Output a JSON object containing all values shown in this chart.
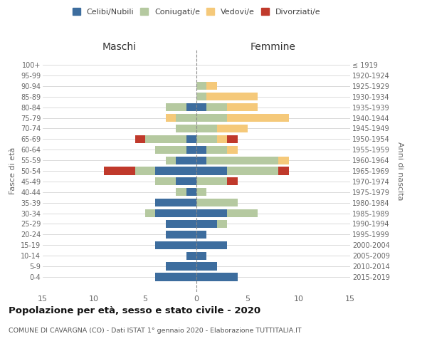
{
  "age_groups": [
    "100+",
    "95-99",
    "90-94",
    "85-89",
    "80-84",
    "75-79",
    "70-74",
    "65-69",
    "60-64",
    "55-59",
    "50-54",
    "45-49",
    "40-44",
    "35-39",
    "30-34",
    "25-29",
    "20-24",
    "15-19",
    "10-14",
    "5-9",
    "0-4"
  ],
  "birth_years": [
    "≤ 1919",
    "1920-1924",
    "1925-1929",
    "1930-1934",
    "1935-1939",
    "1940-1944",
    "1945-1949",
    "1950-1954",
    "1955-1959",
    "1960-1964",
    "1965-1969",
    "1970-1974",
    "1975-1979",
    "1980-1984",
    "1985-1989",
    "1990-1994",
    "1995-1999",
    "2000-2004",
    "2005-2009",
    "2010-2014",
    "2015-2019"
  ],
  "colors": {
    "celibe": "#3d6d9e",
    "coniugato": "#b5c9a0",
    "vedovo": "#f5c97a",
    "divorziato": "#c0392b"
  },
  "maschi": {
    "celibe": [
      0,
      0,
      0,
      0,
      1,
      0,
      0,
      1,
      1,
      2,
      4,
      2,
      1,
      4,
      4,
      3,
      3,
      4,
      1,
      3,
      4
    ],
    "coniugato": [
      0,
      0,
      0,
      0,
      2,
      2,
      2,
      4,
      3,
      1,
      2,
      2,
      1,
      0,
      1,
      0,
      0,
      0,
      0,
      0,
      0
    ],
    "vedovo": [
      0,
      0,
      0,
      0,
      0,
      1,
      0,
      0,
      0,
      0,
      0,
      0,
      0,
      0,
      0,
      0,
      0,
      0,
      0,
      0,
      0
    ],
    "divorziato": [
      0,
      0,
      0,
      0,
      0,
      0,
      0,
      1,
      0,
      0,
      3,
      0,
      0,
      0,
      0,
      0,
      0,
      0,
      0,
      0,
      0
    ]
  },
  "femmine": {
    "celibe": [
      0,
      0,
      0,
      0,
      1,
      0,
      0,
      0,
      1,
      1,
      3,
      0,
      0,
      0,
      3,
      2,
      1,
      3,
      1,
      2,
      4
    ],
    "coniugato": [
      0,
      0,
      1,
      1,
      2,
      3,
      2,
      2,
      2,
      7,
      5,
      3,
      1,
      4,
      3,
      1,
      0,
      0,
      0,
      0,
      0
    ],
    "vedovo": [
      0,
      0,
      1,
      5,
      3,
      6,
      3,
      1,
      1,
      1,
      0,
      0,
      0,
      0,
      0,
      0,
      0,
      0,
      0,
      0,
      0
    ],
    "divorziato": [
      0,
      0,
      0,
      0,
      0,
      0,
      0,
      1,
      0,
      0,
      1,
      1,
      0,
      0,
      0,
      0,
      0,
      0,
      0,
      0,
      0
    ]
  },
  "xlim": 15,
  "title": "Popolazione per età, sesso e stato civile - 2020",
  "subtitle": "COMUNE DI CAVARGNA (CO) - Dati ISTAT 1° gennaio 2020 - Elaborazione TUTTITALIA.IT",
  "ylabel_left": "Fasce di età",
  "ylabel_right": "Anni di nascita",
  "xlabel_maschi": "Maschi",
  "xlabel_femmine": "Femmine",
  "bg_color": "#ffffff",
  "grid_color": "#cccccc"
}
